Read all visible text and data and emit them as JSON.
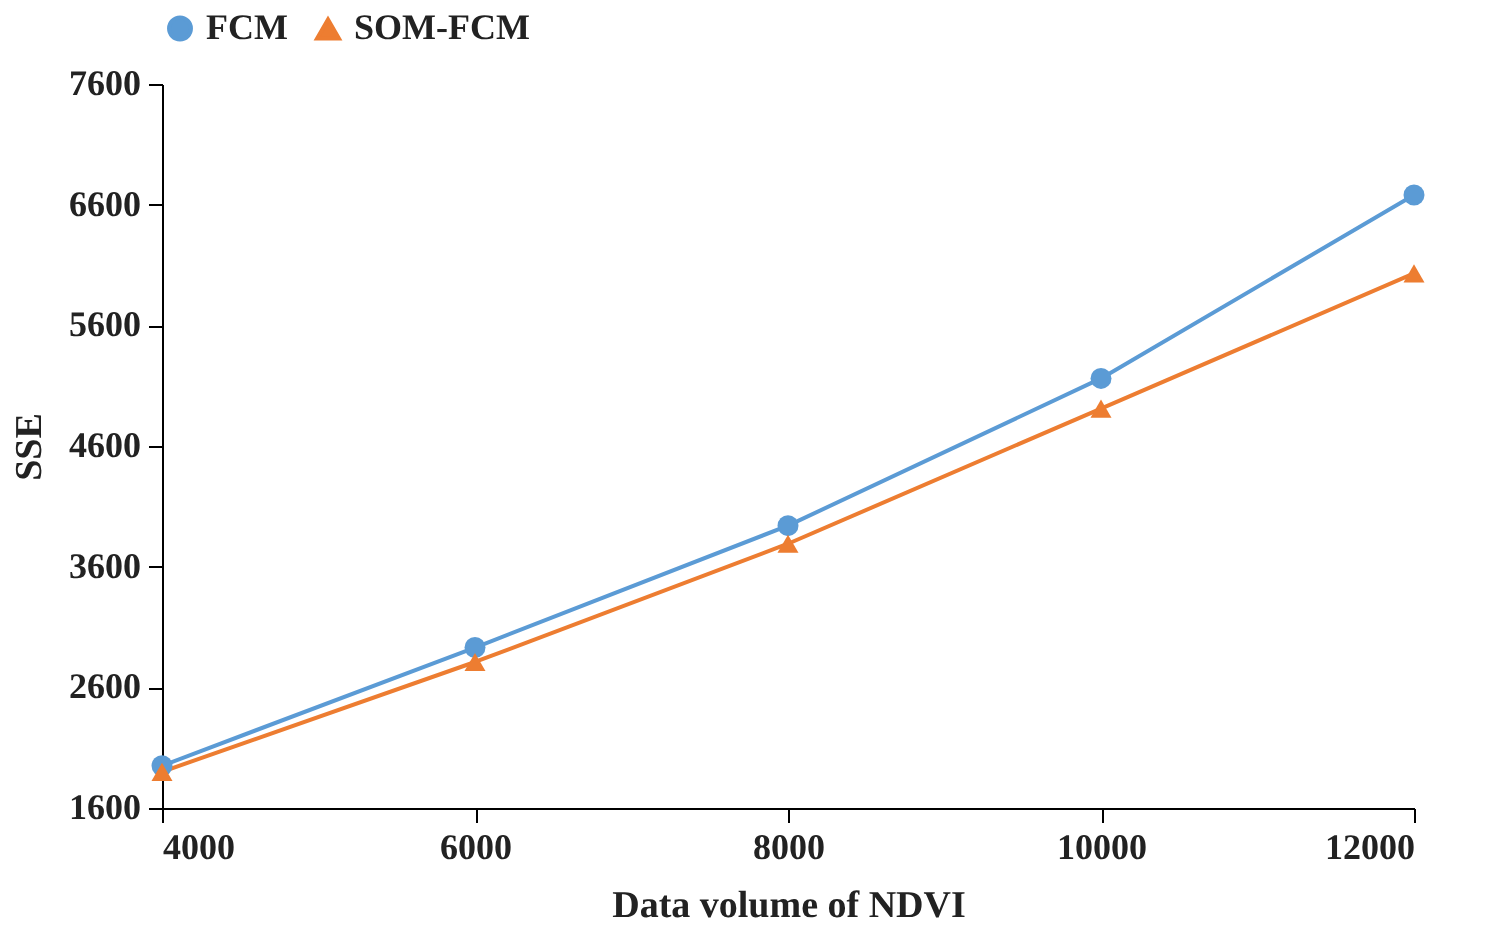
{
  "chart_data": {
    "type": "line",
    "xlabel": "Data volume of NDVI",
    "ylabel": "SSE",
    "x": [
      4000,
      6000,
      8000,
      10000,
      12000
    ],
    "series": [
      {
        "name": "FCM",
        "color": "#5b9bd5",
        "marker": "circle",
        "values": [
          1950,
          2930,
          3940,
          5160,
          6680
        ]
      },
      {
        "name": "SOM-FCM",
        "color": "#ed7d31",
        "marker": "triangle",
        "values": [
          1900,
          2810,
          3790,
          4910,
          6030
        ]
      }
    ],
    "xlim": [
      4000,
      12000
    ],
    "xticks": [
      4000,
      6000,
      8000,
      10000,
      12000
    ],
    "ylim": [
      1600,
      7600
    ],
    "yticks": [
      1600,
      2600,
      3600,
      4600,
      5600,
      6600,
      7600
    ],
    "grid": false,
    "legend": "top"
  }
}
